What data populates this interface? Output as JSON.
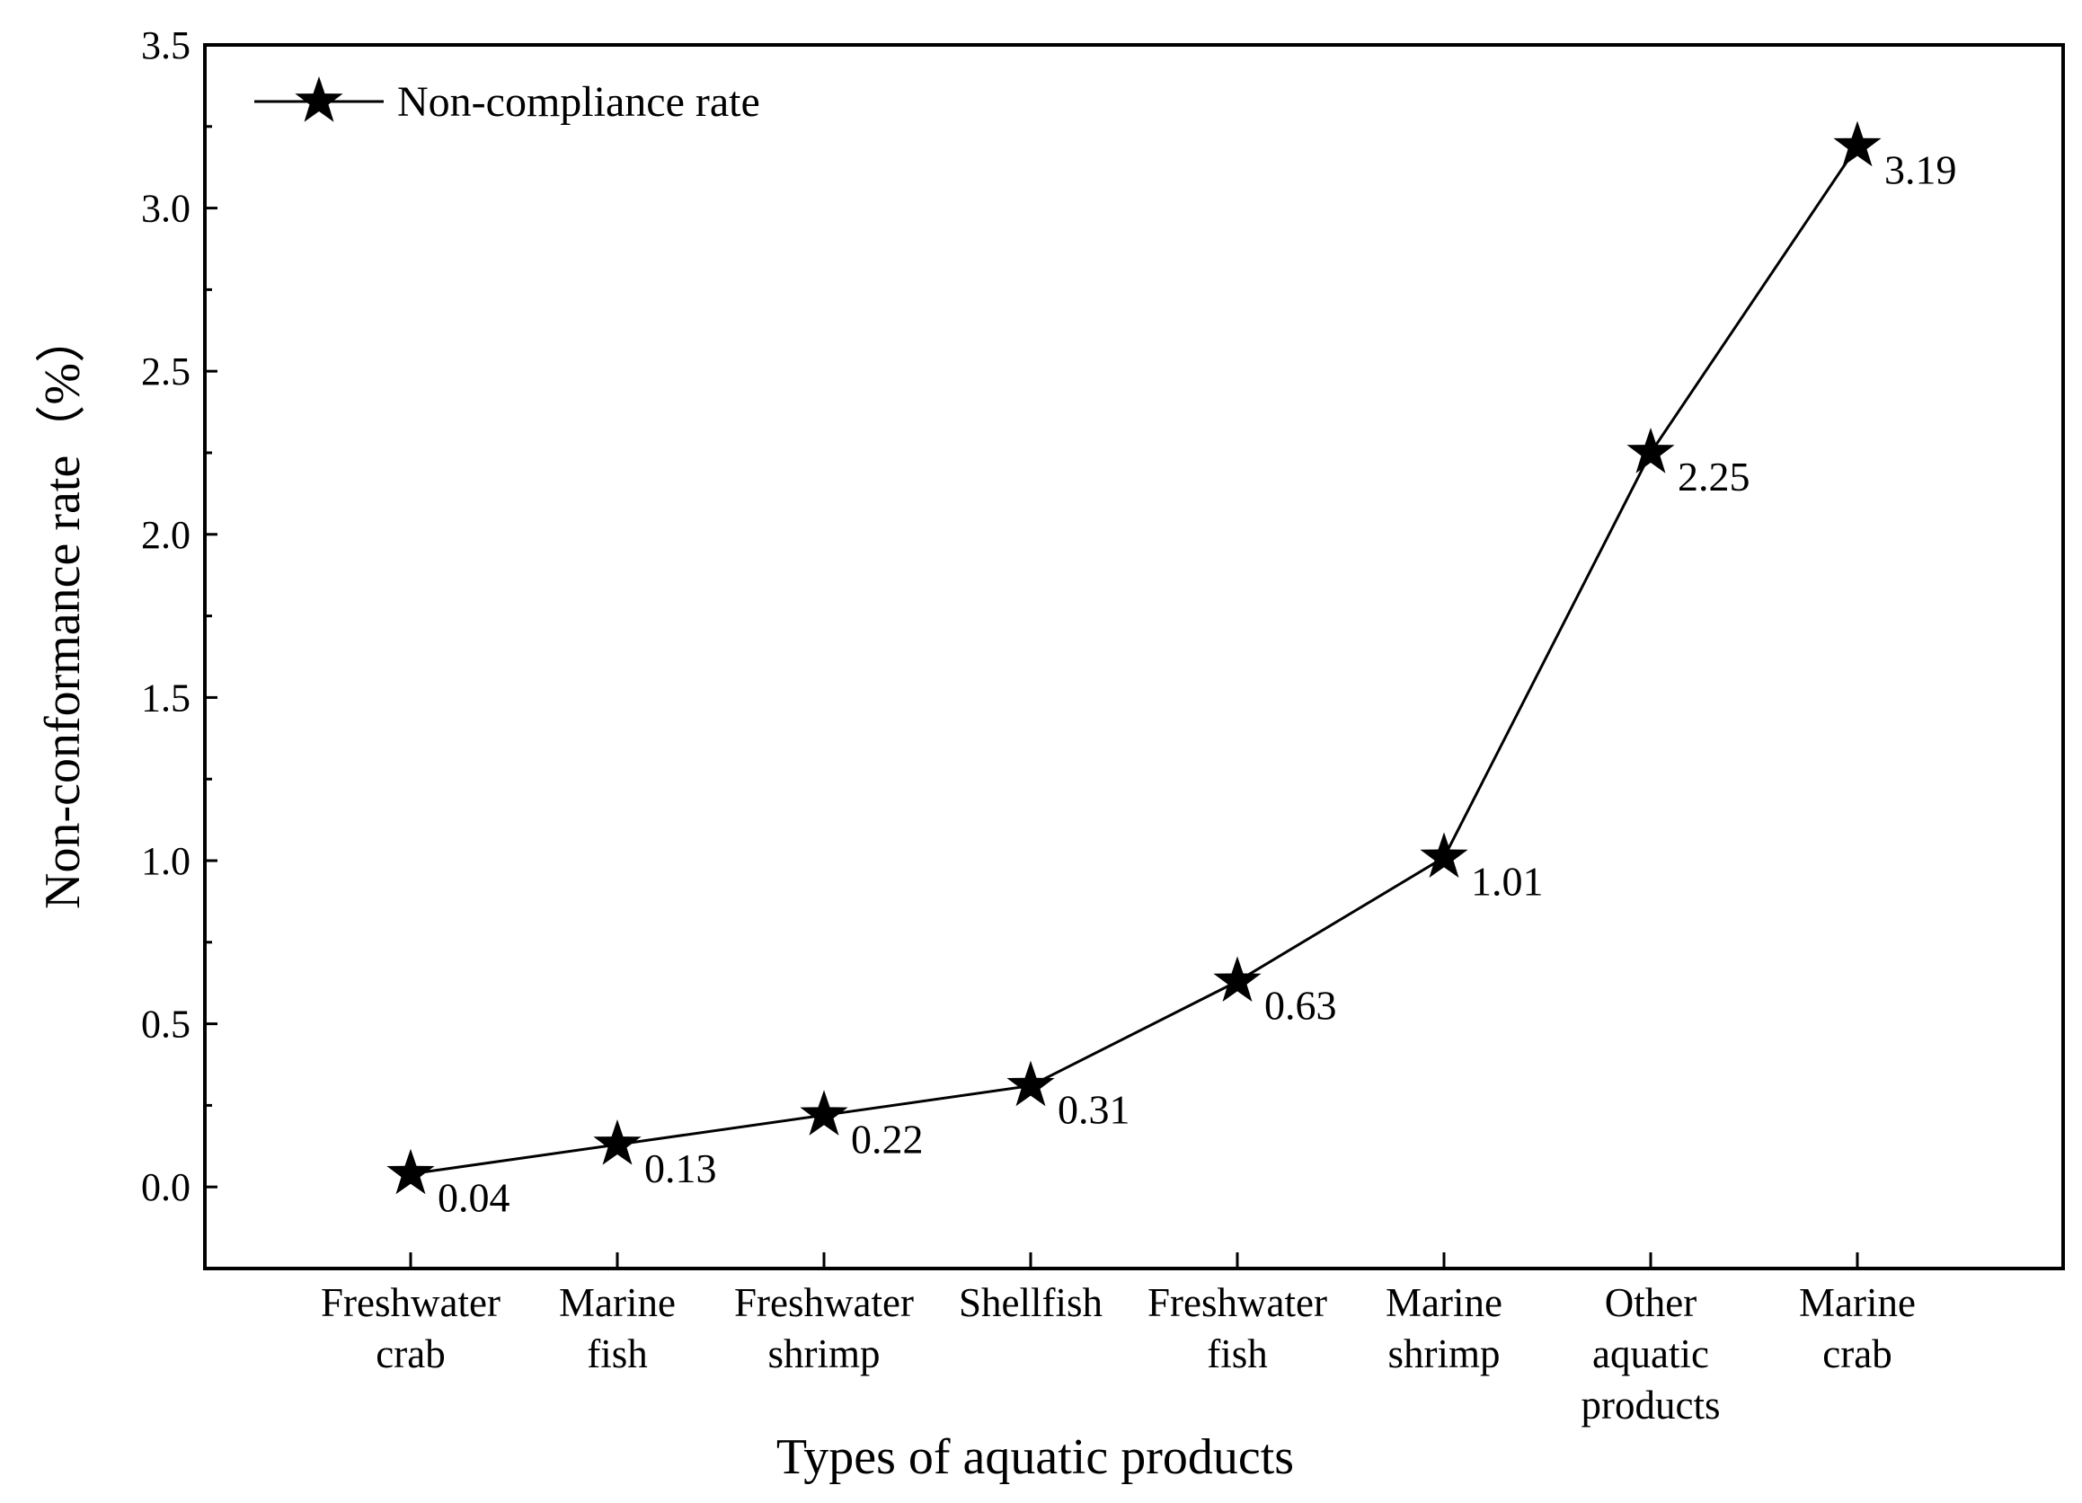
{
  "chart_data": {
    "type": "line",
    "title": "",
    "xlabel": "Types of aquatic products",
    "ylabel": "Non-conformance rate（%）",
    "ylim": [
      -0.25,
      3.5
    ],
    "yticks": [
      0.0,
      0.5,
      1.0,
      1.5,
      2.0,
      2.5,
      3.0,
      3.5
    ],
    "ytick_labels": [
      "0.0",
      "0.5",
      "1.0",
      "1.5",
      "2.0",
      "2.5",
      "3.0",
      "3.5"
    ],
    "categories": [
      [
        "Freshwater",
        "crab"
      ],
      [
        "Marine",
        "fish"
      ],
      [
        "Freshwater",
        "shrimp"
      ],
      [
        "Shellfish"
      ],
      [
        "Freshwater",
        "fish"
      ],
      [
        "Marine",
        "shrimp"
      ],
      [
        "Other",
        "aquatic",
        "products"
      ],
      [
        "Marine",
        "crab"
      ]
    ],
    "series": [
      {
        "name": "Non-compliance rate",
        "marker": "star",
        "color": "#000000",
        "values": [
          0.04,
          0.13,
          0.22,
          0.31,
          0.63,
          1.01,
          2.25,
          3.19
        ],
        "value_labels": [
          "0.04",
          "0.13",
          "0.22",
          "0.31",
          "0.63",
          "1.01",
          "2.25",
          "3.19"
        ]
      }
    ],
    "legend": {
      "position": "top-left",
      "entries": [
        "Non-compliance rate"
      ]
    },
    "grid": false
  }
}
